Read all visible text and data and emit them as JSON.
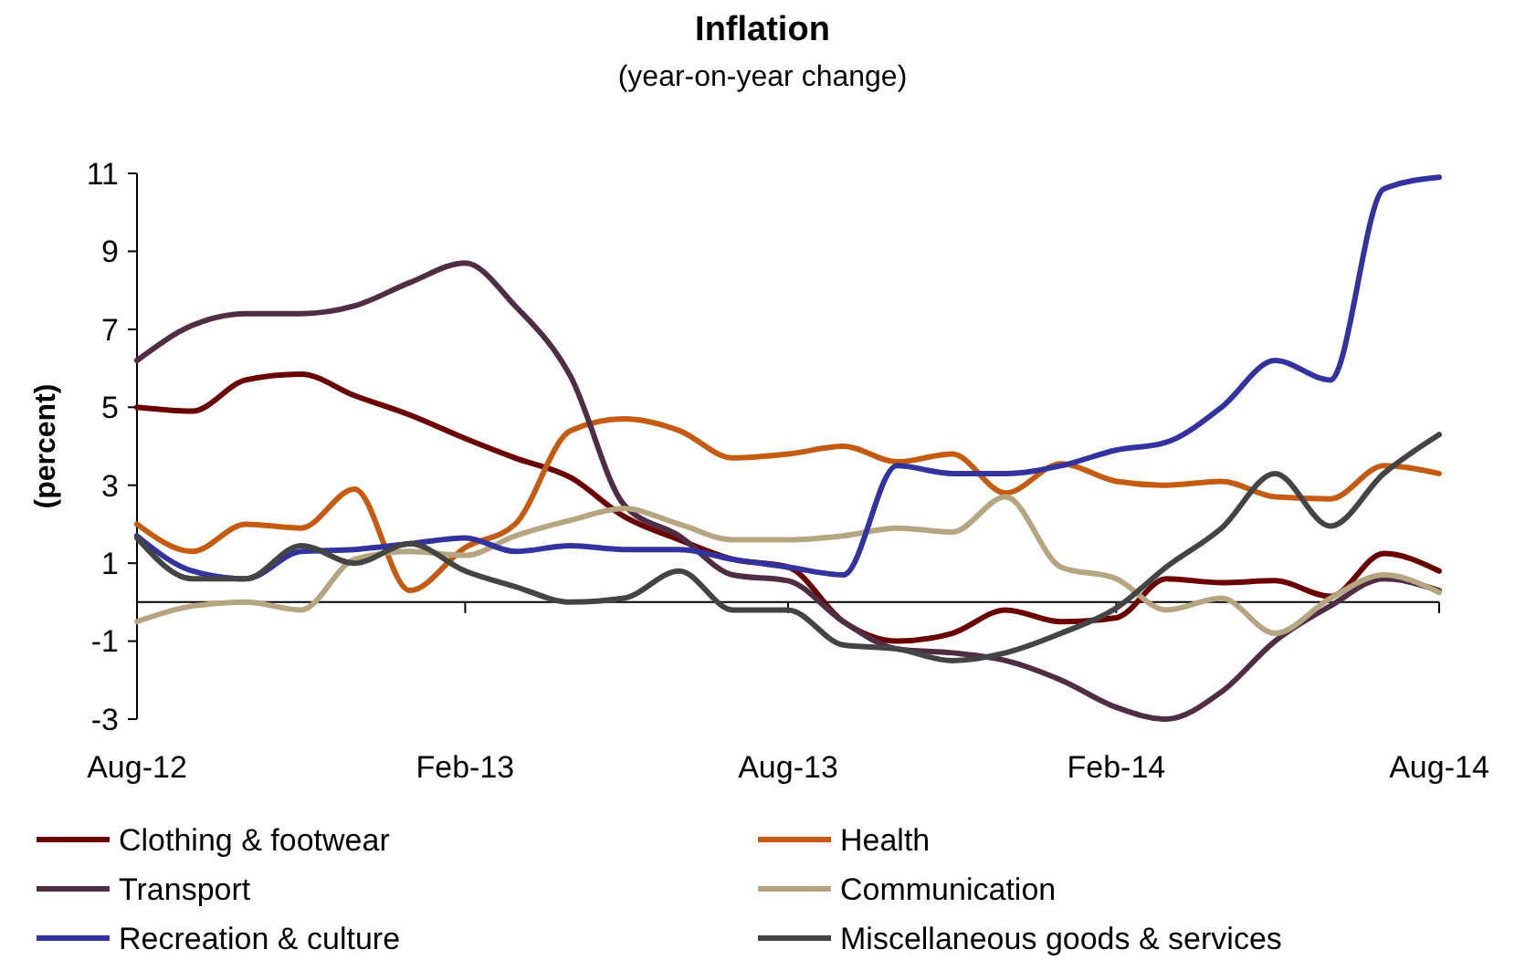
{
  "chart_data": {
    "type": "line",
    "title": "Inflation",
    "subtitle": "(year-on-year change)",
    "ylabel": "(percent)",
    "x": [
      "2012-08",
      "2012-09",
      "2012-10",
      "2012-11",
      "2012-12",
      "2013-01",
      "2013-02",
      "2013-03",
      "2013-04",
      "2013-05",
      "2013-06",
      "2013-07",
      "2013-08",
      "2013-09",
      "2013-10",
      "2013-11",
      "2013-12",
      "2014-01",
      "2014-02",
      "2014-03",
      "2014-04",
      "2014-05",
      "2014-06",
      "2014-07",
      "2014-08"
    ],
    "xlim": [
      "2012-08",
      "2014-08"
    ],
    "xticks": [
      {
        "value": "2012-08",
        "label": "Aug-12"
      },
      {
        "value": "2013-02",
        "label": "Feb-13"
      },
      {
        "value": "2013-08",
        "label": "Aug-13"
      },
      {
        "value": "2014-02",
        "label": "Feb-14"
      },
      {
        "value": "2014-08",
        "label": "Aug-14"
      }
    ],
    "ylim": [
      -3,
      11
    ],
    "yticks": [
      -3,
      -1,
      1,
      3,
      5,
      7,
      9,
      11
    ],
    "grid": false,
    "legend": "bottom",
    "series": [
      {
        "name": "Clothing & footwear",
        "color": "#6b0000",
        "values": [
          5.0,
          4.9,
          5.7,
          5.85,
          5.3,
          4.8,
          4.2,
          3.7,
          3.2,
          2.2,
          1.6,
          1.1,
          0.9,
          -0.5,
          -1.0,
          -0.8,
          -0.2,
          -0.5,
          -0.4,
          0.6,
          0.5,
          0.55,
          0.15,
          1.25,
          0.8
        ]
      },
      {
        "name": "Health",
        "color": "#c55a11",
        "values": [
          2.0,
          1.3,
          2.0,
          1.9,
          2.9,
          0.3,
          1.4,
          2.0,
          4.4,
          4.7,
          4.4,
          3.7,
          3.8,
          4.0,
          3.6,
          3.8,
          2.8,
          3.55,
          3.1,
          3.0,
          3.1,
          2.7,
          2.65,
          3.5,
          3.3
        ]
      },
      {
        "name": "Transport",
        "color": "#4f2d45",
        "values": [
          6.2,
          7.1,
          7.4,
          7.4,
          7.6,
          8.2,
          8.7,
          7.6,
          5.8,
          2.5,
          1.7,
          0.7,
          0.55,
          -0.5,
          -1.2,
          -1.3,
          -1.5,
          -2.0,
          -2.7,
          -3.0,
          -2.3,
          -1.0,
          -0.1,
          0.6,
          0.3
        ]
      },
      {
        "name": "Communication",
        "color": "#b5a580",
        "values": [
          -0.5,
          -0.1,
          0.0,
          -0.2,
          1.1,
          1.3,
          1.2,
          1.7,
          2.1,
          2.4,
          2.0,
          1.6,
          1.6,
          1.7,
          1.9,
          1.8,
          2.7,
          0.9,
          0.6,
          -0.2,
          0.1,
          -0.8,
          0.1,
          0.7,
          0.25
        ]
      },
      {
        "name": "Recreation & culture",
        "color": "#3333a0",
        "values": [
          1.7,
          0.8,
          0.6,
          1.3,
          1.35,
          1.5,
          1.65,
          1.3,
          1.45,
          1.35,
          1.35,
          1.1,
          0.9,
          0.7,
          3.5,
          3.3,
          3.3,
          3.5,
          3.9,
          4.1,
          5.0,
          6.2,
          5.7,
          10.6,
          10.9
        ]
      },
      {
        "name": "Miscellaneous goods & services",
        "color": "#444444",
        "values": [
          1.65,
          0.6,
          0.6,
          1.45,
          1.0,
          1.5,
          0.8,
          0.4,
          0.0,
          0.1,
          0.8,
          -0.2,
          -0.2,
          -1.1,
          -1.2,
          -1.5,
          -1.3,
          -0.8,
          -0.15,
          0.9,
          1.9,
          3.3,
          1.95,
          3.3,
          4.3
        ]
      }
    ]
  }
}
